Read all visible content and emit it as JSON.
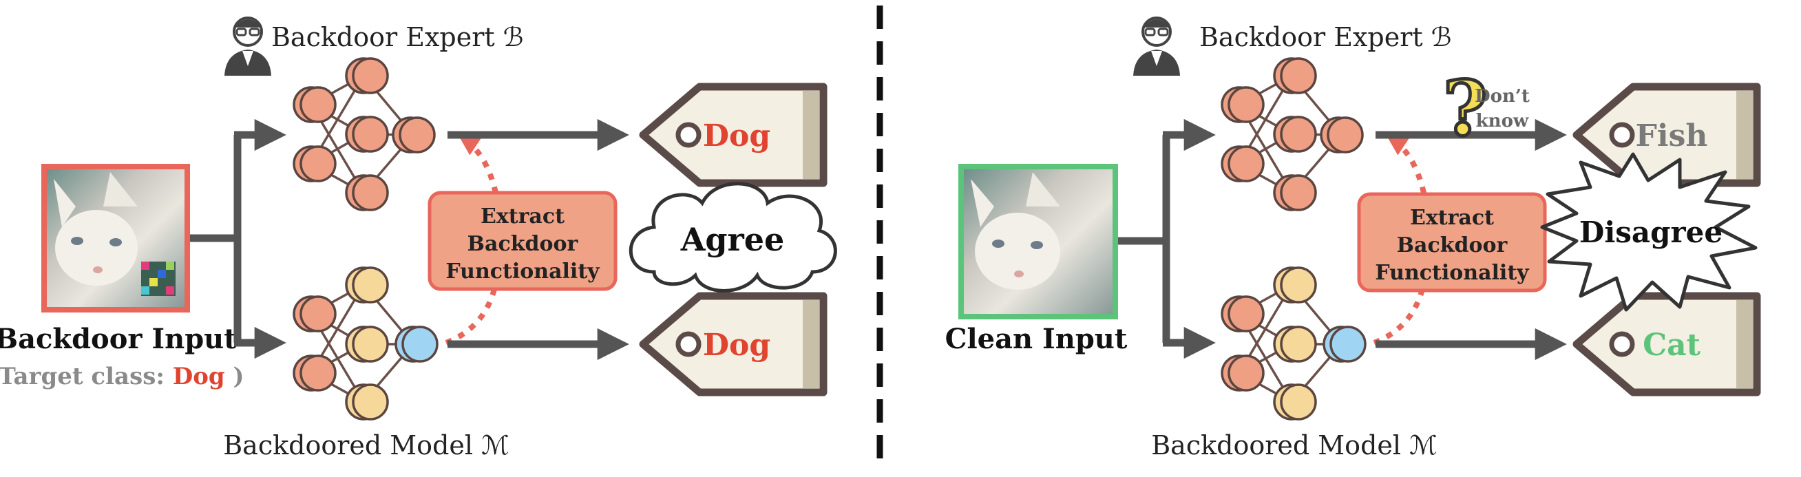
{
  "left_panel": {
    "expert_label": "Backdoor Expert ℬ",
    "model_label": "Backdoored Model ℳ",
    "input_title": "Backdoor Input",
    "target_prefix": "(Target class: ",
    "target_value": "Dog",
    "target_suffix": " )",
    "extract_lines": [
      "Extract",
      "Backdoor",
      "Functionality"
    ],
    "top_tag": "Dog",
    "bottom_tag": "Dog",
    "verdict": "Agree"
  },
  "right_panel": {
    "expert_label": "Backdoor Expert ℬ",
    "model_label": "Backdoored Model ℳ",
    "input_title": "Clean Input",
    "extract_lines": [
      "Extract",
      "Backdoor",
      "Functionality"
    ],
    "unknown_lines": [
      "Don’t",
      "know"
    ],
    "top_tag": "Fish",
    "bottom_tag": "Cat",
    "verdict": "Disagree"
  },
  "colors": {
    "backdoor_frame": "#e8665a",
    "clean_frame": "#5cc47a",
    "tag_text_red": "#e0432f",
    "tag_text_gray": "#7a7a7a",
    "tag_text_green": "#5cc47a",
    "neuron_orange": "#ee9f84",
    "neuron_yellow": "#f6d89a",
    "neuron_blue": "#9fd4f3",
    "extract_box": "#f0a287",
    "arrow": "#555555"
  }
}
